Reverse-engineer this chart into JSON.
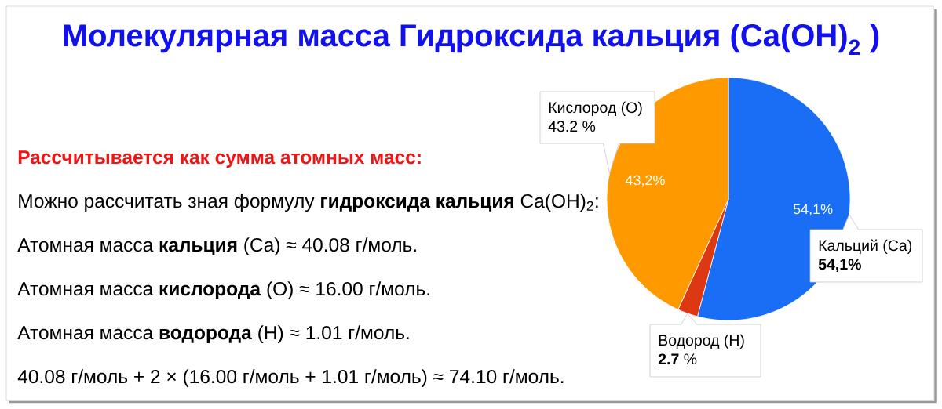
{
  "chart_data": {
    "type": "pie",
    "title": "Молекулярная масса Гидроксида кальция (Ca(OH)$_{2}$ )",
    "categories": [
      "Кальций (Ca)",
      "Водород (H)",
      "Кислород (O)"
    ],
    "values": [
      54.1,
      2.7,
      43.2
    ],
    "colors": [
      "#1a6ef5",
      "#dc3912",
      "#ff9900"
    ],
    "value_labels": [
      "54,1%",
      null,
      "43,2%"
    ],
    "annotations": [
      {
        "text": "**54,1%**",
        "x": "Кальций (Ca)"
      },
      {
        "text": "**2.7** %",
        "x": "Водород (H)"
      },
      {
        "text": "43.2 %",
        "x": "Кислород (O)"
      },
      "Рассчитывается как сумма атомных масс:",
      "Можно рассчитать зная формулу **гидроксида кальция** Ca(OH)$_{2}$:",
      "Атомная масса **кальция** (Ca) ≈ 40.08 г/моль.",
      "Атомная масса **кислорода** (O) ≈ 16.00 г/моль.",
      "Атомная масса **водорода** (H) ≈ 1.01 г/моль.",
      "40.08 г/моль + 2 × (16.00 г/моль + 1.01 г/моль) ≈ 74.10 г/моль."
    ]
  }
}
